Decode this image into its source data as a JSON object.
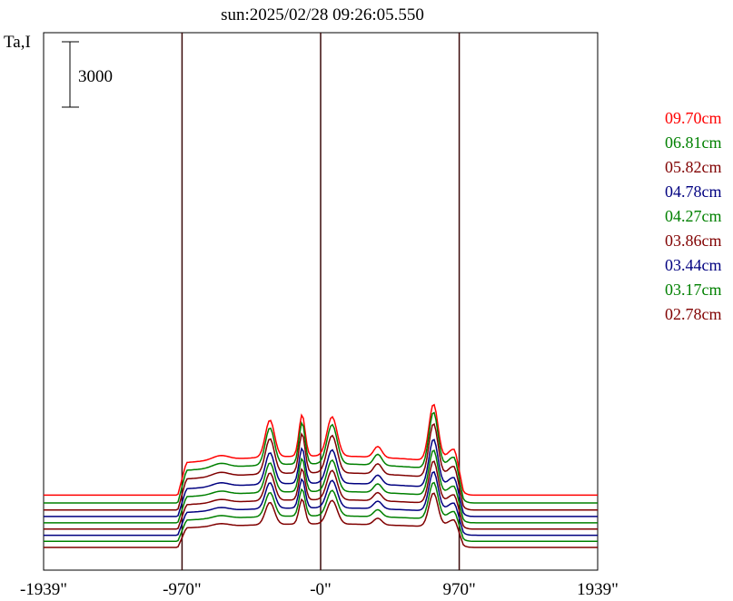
{
  "chart_data": {
    "type": "line",
    "title": "sun:2025/02/28 09:26:05.550",
    "ylabel": "Ta,I",
    "scale_bar_label": "3000",
    "x_ticks": [
      {
        "value": -1939,
        "label": "-1939\""
      },
      {
        "value": -970,
        "label": "-970\""
      },
      {
        "value": 0,
        "label": "-0\""
      },
      {
        "value": 970,
        "label": "970\""
      },
      {
        "value": 1939,
        "label": "1939\""
      }
    ],
    "xlim": [
      -1939,
      1939
    ],
    "vertical_lines": [
      -970,
      0,
      970
    ],
    "colors": {
      "title": "#000080",
      "axis": "#000000",
      "guide": "#3a0a0a"
    },
    "series": [
      {
        "name": "09.70cm",
        "color": "#ff0000",
        "baseline": 2400,
        "scale": 1.0
      },
      {
        "name": "06.81cm",
        "color": "#008000",
        "baseline": 2040,
        "scale": 1.0
      },
      {
        "name": "05.82cm",
        "color": "#800000",
        "baseline": 1720,
        "scale": 0.95
      },
      {
        "name": "04.78cm",
        "color": "#000080",
        "baseline": 1420,
        "scale": 0.85
      },
      {
        "name": "04.27cm",
        "color": "#008000",
        "baseline": 1130,
        "scale": 0.8
      },
      {
        "name": "03.86cm",
        "color": "#800000",
        "baseline": 840,
        "scale": 0.75
      },
      {
        "name": "03.44cm",
        "color": "#000080",
        "baseline": 560,
        "scale": 0.7
      },
      {
        "name": "03.17cm",
        "color": "#008000",
        "baseline": 280,
        "scale": 0.65
      },
      {
        "name": "02.78cm",
        "color": "#800000",
        "baseline": 0,
        "scale": 0.6
      }
    ]
  }
}
